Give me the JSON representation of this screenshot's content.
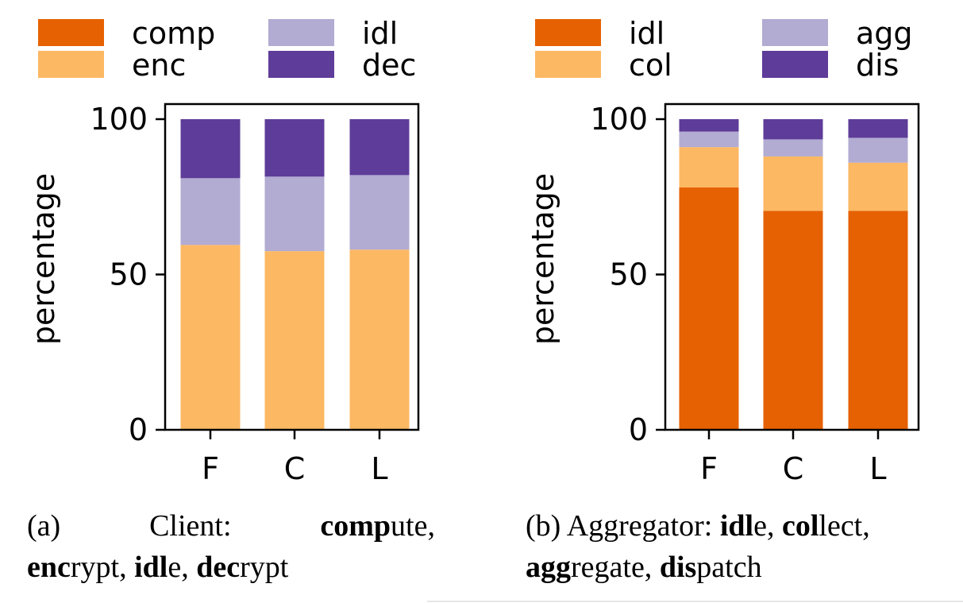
{
  "figure": {
    "colors": {
      "dark_orange": "#e66101",
      "light_orange": "#fdb863",
      "light_purple": "#b2abd2",
      "dark_purple": "#5e3c99"
    }
  },
  "chart_data": [
    {
      "type": "bar",
      "stacked": true,
      "categories": [
        "F",
        "C",
        "L"
      ],
      "ylabel": "percentage",
      "ylim": [
        0,
        100
      ],
      "yticks": [
        "0",
        "50",
        "100"
      ],
      "legend_placement": "top",
      "legend": [
        "comp",
        "enc",
        "idl",
        "dec"
      ],
      "series": [
        {
          "name": "comp",
          "color": "#e66101",
          "values": [
            0,
            0,
            0
          ]
        },
        {
          "name": "enc",
          "color": "#fdb863",
          "values": [
            59.5,
            57.5,
            58
          ]
        },
        {
          "name": "idl",
          "color": "#b2abd2",
          "values": [
            21.5,
            24,
            24
          ]
        },
        {
          "name": "dec",
          "color": "#5e3c99",
          "values": [
            19,
            18.5,
            18
          ]
        }
      ],
      "caption": {
        "label": "(a)",
        "prefix": "Client:",
        "parts": [
          {
            "bold": "comp",
            "rest": "ute,"
          },
          {
            "bold": "enc",
            "rest": "rypt,"
          },
          {
            "bold": "idl",
            "rest": "e,"
          },
          {
            "bold": "dec",
            "rest": "rypt"
          }
        ]
      }
    },
    {
      "type": "bar",
      "stacked": true,
      "categories": [
        "F",
        "C",
        "L"
      ],
      "ylabel": "percentage",
      "ylim": [
        0,
        100
      ],
      "yticks": [
        "0",
        "50",
        "100"
      ],
      "legend_placement": "top",
      "legend": [
        "idl",
        "col",
        "agg",
        "dis"
      ],
      "series": [
        {
          "name": "idl",
          "color": "#e66101",
          "values": [
            78,
            70.5,
            70.5
          ]
        },
        {
          "name": "col",
          "color": "#fdb863",
          "values": [
            13,
            17.5,
            15.5
          ]
        },
        {
          "name": "agg",
          "color": "#b2abd2",
          "values": [
            5,
            5.5,
            8
          ]
        },
        {
          "name": "dis",
          "color": "#5e3c99",
          "values": [
            4,
            6.5,
            6
          ]
        }
      ],
      "caption": {
        "label": "(b)",
        "prefix": "Aggregator:",
        "parts": [
          {
            "bold": "idl",
            "rest": "e,"
          },
          {
            "bold": "col",
            "rest": "lect,"
          },
          {
            "bold": "agg",
            "rest": "regate,"
          },
          {
            "bold": "dis",
            "rest": "patch"
          }
        ]
      }
    }
  ]
}
